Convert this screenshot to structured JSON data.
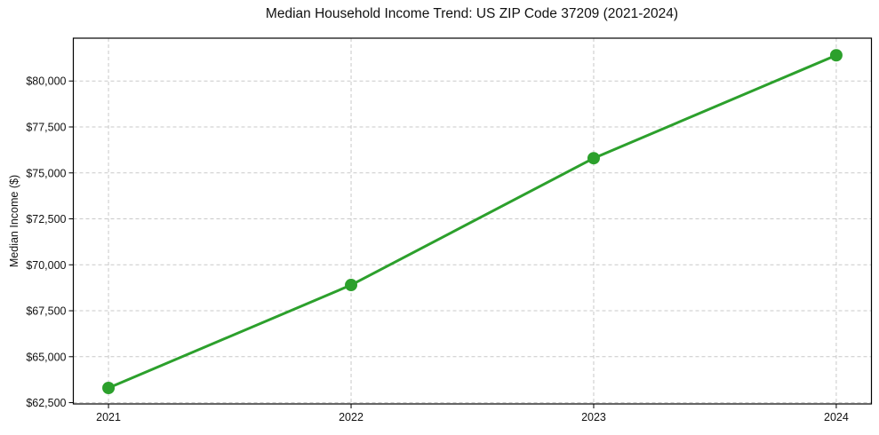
{
  "chart_data": {
    "type": "line",
    "title": "Median Household Income Trend: US ZIP Code 37209 (2021-2024)",
    "xlabel": "",
    "ylabel": "Median Income ($)",
    "x": [
      2021,
      2022,
      2023,
      2024
    ],
    "x_tick_labels": [
      "2021",
      "2022",
      "2023",
      "2024"
    ],
    "series": [
      {
        "name": "Median Household Income",
        "values": [
          63300,
          68900,
          75800,
          81400
        ],
        "point_labels": [
          "$63,300",
          "$68,900",
          "$75,800",
          "$81,400"
        ]
      }
    ],
    "y_ticks": [
      62500,
      65000,
      67500,
      70000,
      72500,
      75000,
      77500,
      80000
    ],
    "y_tick_labels": [
      "$62,500",
      "$65,000",
      "$67,500",
      "$70,000",
      "$72,500",
      "$75,000",
      "$77,500",
      "$80,000"
    ],
    "xlim": [
      2020.855,
      2024.145
    ],
    "ylim": [
      62430,
      82330
    ],
    "grid": true,
    "grid_style": "dashed",
    "legend": false,
    "style": {
      "line_color": "#2ca02c",
      "marker_color": "#2ca02c",
      "grid_color": "#c9c9c9",
      "spine_color": "#000000",
      "tick_color": "#000000",
      "text_color": "#111111",
      "background": "#ffffff",
      "line_width": 3,
      "marker_radius": 7
    }
  }
}
